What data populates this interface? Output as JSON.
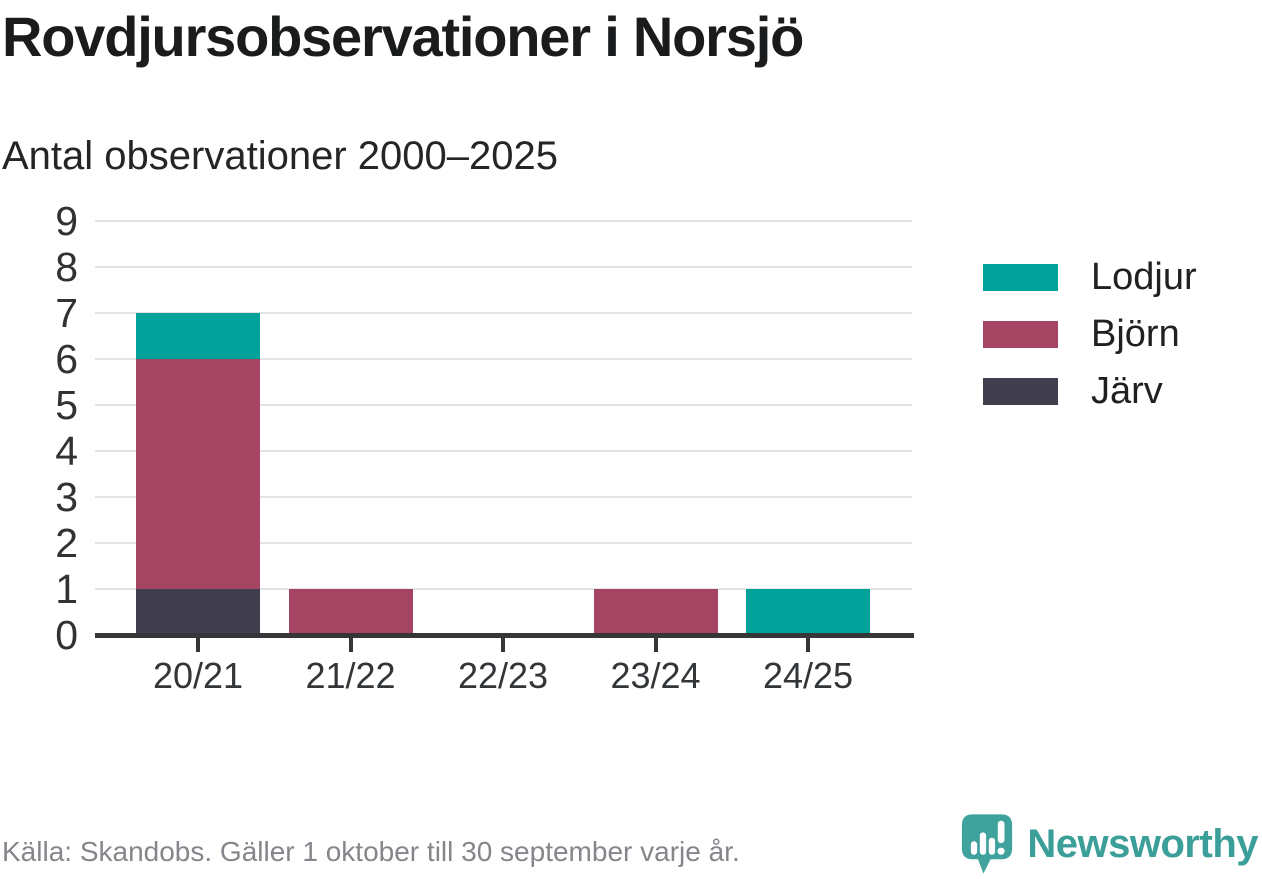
{
  "title": "Rovdjursobservationer i Norsjö",
  "subtitle": "Antal observationer 2000–2025",
  "footer": {
    "source": "Källa: Skandobs. Gäller 1 oktober till 30 september varje år.",
    "brand": "Newsworthy"
  },
  "colors": {
    "lodjur": "#00A29A",
    "bjorn": "#A64563",
    "jarv": "#413E4D",
    "axis": "#363638",
    "grid": "#E4E4E4",
    "brand_teal": "#3FA29D",
    "footer_text": "#85868B"
  },
  "chart_data": {
    "type": "bar",
    "stacked": true,
    "title": "Rovdjursobservationer i Norsjö",
    "subtitle": "Antal observationer 2000–2025",
    "categories": [
      "20/21",
      "21/22",
      "22/23",
      "23/24",
      "24/25"
    ],
    "series": [
      {
        "name": "Lodjur",
        "color": "#00A29A",
        "values": [
          1,
          0,
          0,
          0,
          1
        ]
      },
      {
        "name": "Björn",
        "color": "#A64563",
        "values": [
          5,
          1,
          0,
          1,
          0
        ]
      },
      {
        "name": "Järv",
        "color": "#413E4D",
        "values": [
          1,
          0,
          0,
          0,
          0
        ]
      }
    ],
    "stack_order_bottom_to_top": [
      "Järv",
      "Björn",
      "Lodjur"
    ],
    "totals_by_category": [
      7,
      1,
      0,
      1,
      1
    ],
    "ylim": [
      0,
      9
    ],
    "yticks": [
      0,
      1,
      2,
      3,
      4,
      5,
      6,
      7,
      8,
      9
    ],
    "grid": true,
    "legend_position": "right"
  }
}
